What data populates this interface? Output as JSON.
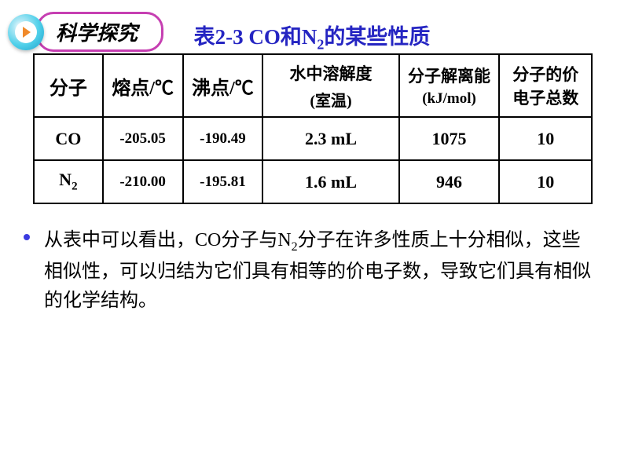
{
  "badge": {
    "label": "科学探究"
  },
  "title_parts": {
    "prefix": "表2-3  CO和N",
    "sub": "2",
    "suffix": "的某些性质"
  },
  "colors": {
    "title_color": "#2525c2",
    "bullet_dot": "#3b3be0",
    "pill_border": "#c63fb2",
    "arrow_fill": "#f08a2b"
  },
  "table": {
    "headers": {
      "c0": "分子",
      "c1_pre": "熔点/",
      "c1_unit": "℃",
      "c2_pre": "沸点/",
      "c2_unit": "℃",
      "c3_line1": "水中溶解度",
      "c3_line2": "(室温)",
      "c4_line1": "分子解离能",
      "c4_line2": "(kJ/mol)",
      "c5_line1": "分子的价",
      "c5_line2": "电子总数"
    },
    "rows": [
      {
        "mol_html": "CO",
        "mp": "-205.05",
        "bp": "-190.49",
        "sol": "2.3 mL",
        "de": "1075",
        "ve": "10"
      },
      {
        "mol_html": "N<sub class='mini'>2</sub>",
        "mp": "-210.00",
        "bp": "-195.81",
        "sol": "1.6 mL",
        "de": "946",
        "ve": "10"
      }
    ]
  },
  "summary_html": "从表中可以看出，CO分子与N<sub>2</sub>分子在许多性质上十分相似，这些相似性，可以归结为它们具有相等的价电子数，导致它们具有相似的化学结构。"
}
